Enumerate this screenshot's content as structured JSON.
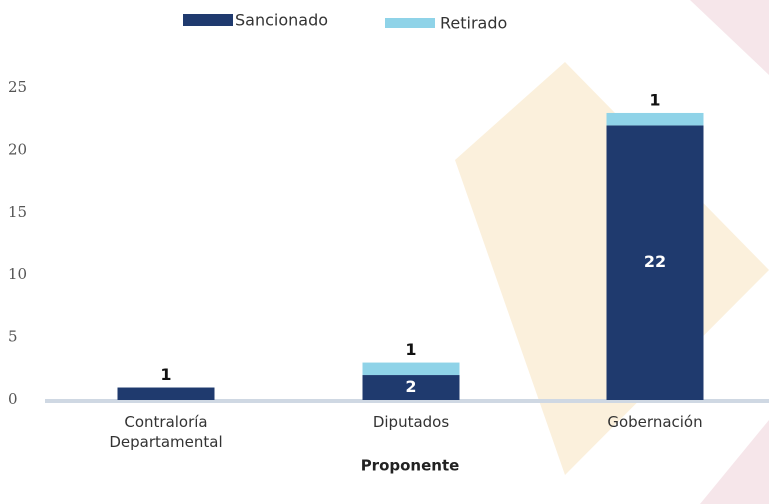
{
  "chart_data": {
    "type": "stacked-bar",
    "categories": [
      "Contraloría\nDepartamental",
      "Diputados",
      "Gobernación"
    ],
    "series": [
      {
        "name": "Sancionado",
        "color": "#1f3a6e",
        "values": [
          1,
          2,
          22
        ]
      },
      {
        "name": "Retirado",
        "color": "#8fd3e8",
        "values": [
          null,
          1,
          1
        ]
      }
    ],
    "ylim": [
      0,
      25
    ],
    "yticks": [
      0,
      5,
      10,
      15,
      20,
      25
    ],
    "x_label": "Proponente",
    "legend": "top"
  }
}
